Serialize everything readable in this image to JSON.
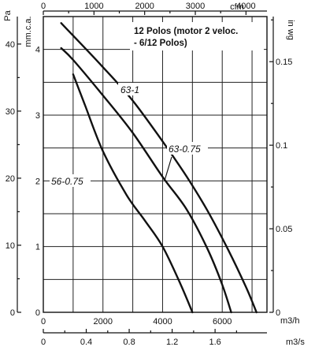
{
  "chart_data": {
    "type": "line",
    "title": "",
    "note_lines": [
      "12 Polos (motor 2 veloc.",
      "- 6/12 Polos)"
    ],
    "axes": {
      "bottom_m3h": {
        "label": "m3/h",
        "range": [
          0,
          7500
        ],
        "ticks": [
          0,
          2000,
          4000,
          6000
        ],
        "tick_labels": [
          "0",
          "2000",
          "4000",
          "6000"
        ]
      },
      "bottom_m3s": {
        "label": "m3/s",
        "range": [
          0,
          2.0833
        ],
        "ticks": [
          0,
          0.4,
          0.8,
          1.2,
          1.6
        ],
        "tick_labels": [
          "0",
          "0.4",
          "0.8",
          "1.2",
          "1.6"
        ]
      },
      "top_cfm": {
        "label": "cfm",
        "range": [
          0,
          4414
        ],
        "ticks": [
          0,
          1000,
          2000,
          3000,
          4000
        ],
        "tick_labels": [
          "0",
          "1000",
          "2000",
          "3000",
          "4000"
        ]
      },
      "left_pa": {
        "label": "Pa",
        "range": [
          0,
          44.1
        ],
        "ticks": [
          0,
          10,
          20,
          30,
          40
        ],
        "tick_labels": [
          "0",
          "10",
          "20",
          "30",
          "40"
        ]
      },
      "left_mmca": {
        "label": "mm.c.a.",
        "range": [
          0,
          4.5
        ],
        "ticks": [
          0,
          1,
          2,
          3,
          4
        ],
        "tick_labels": [
          "0",
          "1",
          "2",
          "3",
          "4"
        ]
      },
      "right_inwg": {
        "label": "in wg",
        "range": [
          0,
          0.177
        ],
        "ticks": [
          0,
          0.05,
          0.1,
          0.15
        ],
        "tick_labels": [
          "0",
          "0.05",
          "0.1",
          "0.15"
        ]
      }
    },
    "grid": true,
    "series": [
      {
        "name": "63-1",
        "x_unit": "m3/h",
        "y_unit": "mm.c.a.",
        "x": [
          600,
          1000,
          2000,
          3000,
          4000,
          4800,
          5500,
          6200,
          6800,
          7150
        ],
        "y": [
          4.4,
          4.21,
          3.73,
          3.22,
          2.6,
          2.07,
          1.55,
          0.95,
          0.38,
          0
        ]
      },
      {
        "name": "63-0.75",
        "x_unit": "m3/h",
        "y_unit": "mm.c.a.",
        "x": [
          600,
          1000,
          2000,
          3000,
          4000,
          4800,
          5500,
          6000,
          6300
        ],
        "y": [
          4.02,
          3.84,
          3.3,
          2.73,
          2.06,
          1.57,
          0.97,
          0.42,
          0
        ]
      },
      {
        "name": "56-0.75",
        "x_unit": "m3/h",
        "y_unit": "mm.c.a.",
        "x": [
          1000,
          1400,
          2000,
          2800,
          3400,
          4000,
          4600,
          5000
        ],
        "y": [
          3.62,
          3.15,
          2.45,
          1.78,
          1.4,
          1.0,
          0.43,
          0
        ]
      }
    ],
    "series_label_text": [
      "63-1",
      "63-0.75",
      "56-0.75"
    ]
  }
}
